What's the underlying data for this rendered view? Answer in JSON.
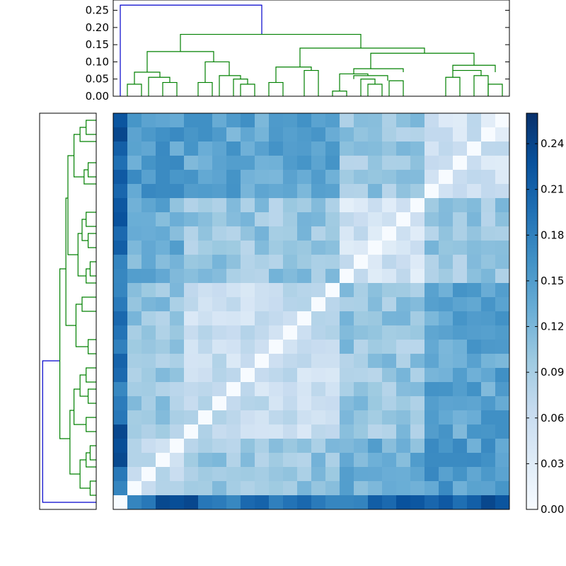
{
  "chart_data": [
    {
      "type": "dendrogram",
      "orientation": "top",
      "ylim": [
        0,
        0.28
      ],
      "yticks": [
        "0.00",
        "0.05",
        "0.10",
        "0.15",
        "0.20",
        "0.25"
      ],
      "grid": false,
      "link_colors": {
        "above_threshold": "#0000cc",
        "cluster": "#008000"
      }
    },
    {
      "type": "dendrogram",
      "orientation": "left",
      "grid": false,
      "link_colors": {
        "above_threshold": "#0000cc",
        "cluster": "#008000"
      }
    },
    {
      "type": "heatmap",
      "colormap": "Blues",
      "size": 28,
      "vmin": 0,
      "vmax": 0.26,
      "colorbar_ticks": [
        "0.00",
        "0.03",
        "0.06",
        "0.09",
        "0.12",
        "0.15",
        "0.18",
        "0.21",
        "0.24"
      ],
      "grid": false
    }
  ]
}
